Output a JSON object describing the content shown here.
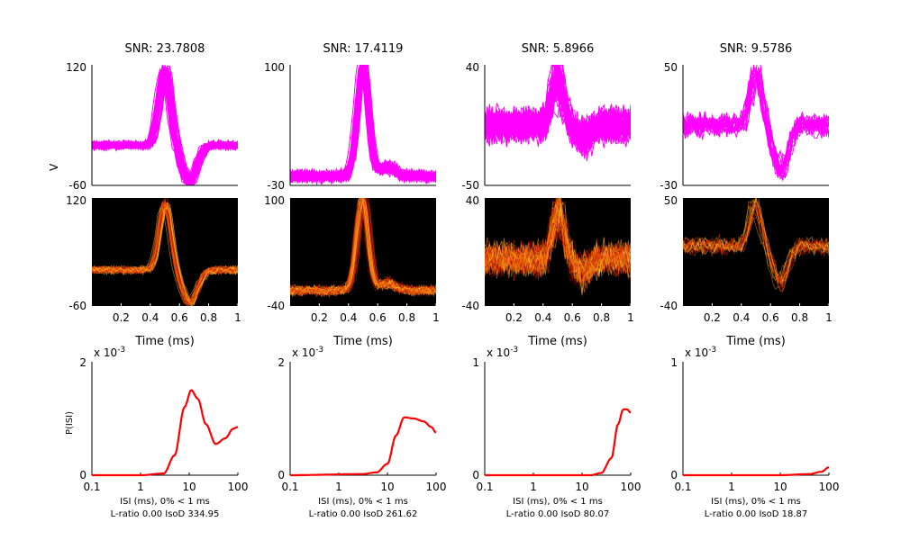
{
  "chart_data": {
    "type": "line",
    "units": {
      "waveform_xlabel": "Time (ms)",
      "ylabel_cut": "V",
      "isi_ylabel": "P(ISI)",
      "isi_exponent": "x 10",
      "isi_exponent_power": "-3"
    },
    "columns": [
      {
        "snr_title": "SNR: 23.7808",
        "wave": {
          "ylim": [
            -60,
            120
          ],
          "ylabels": [
            "120",
            "-60"
          ],
          "peak": 110,
          "trough": -55,
          "baseline": 0,
          "spread": 10,
          "n_traces": 60
        },
        "density": {
          "ylim": [
            -60,
            120
          ],
          "ylabels": [
            "120",
            "-60"
          ]
        },
        "isi": {
          "ymax_label": "2",
          "ylim": [
            0,
            2
          ],
          "curve": [
            [
              0.1,
              0
            ],
            [
              1,
              0
            ],
            [
              3,
              0.03
            ],
            [
              5,
              0.35
            ],
            [
              8,
              1.2
            ],
            [
              11,
              1.5
            ],
            [
              15,
              1.35
            ],
            [
              22,
              0.9
            ],
            [
              35,
              0.55
            ],
            [
              55,
              0.65
            ],
            [
              80,
              0.82
            ],
            [
              100,
              0.85
            ]
          ],
          "xlabel": "ISI (ms), 0% < 1 ms",
          "stats": "L-ratio 0.00 IsoD 334.95"
        }
      },
      {
        "snr_title": "SNR: 17.4119",
        "wave": {
          "ylim": [
            -30,
            100
          ],
          "ylabels": [
            "100",
            "-30"
          ],
          "peak": 100,
          "trough": -10,
          "baseline": -20,
          "spread": 10,
          "n_traces": 60
        },
        "density": {
          "ylim": [
            -40,
            100
          ],
          "ylabels": [
            "100",
            "-40"
          ]
        },
        "isi": {
          "ymax_label": "2",
          "ylim": [
            0,
            2
          ],
          "curve": [
            [
              0.1,
              0
            ],
            [
              3,
              0.02
            ],
            [
              6,
              0.05
            ],
            [
              10,
              0.2
            ],
            [
              15,
              0.7
            ],
            [
              22,
              1.02
            ],
            [
              35,
              1.0
            ],
            [
              55,
              0.95
            ],
            [
              80,
              0.85
            ],
            [
              100,
              0.75
            ]
          ],
          "xlabel": "ISI (ms), 0% < 1 ms",
          "stats": "L-ratio 0.00 IsoD 261.62"
        }
      },
      {
        "snr_title": "SNR: 5.8966",
        "wave": {
          "ylim": [
            -50,
            40
          ],
          "ylabels": [
            "40",
            "-50"
          ],
          "peak": 30,
          "trough": -15,
          "baseline": -5,
          "spread": 20,
          "n_traces": 55
        },
        "density": {
          "ylim": [
            -40,
            40
          ],
          "ylabels": [
            "40",
            "-40"
          ]
        },
        "isi": {
          "ymax_label": "1",
          "ylim": [
            0,
            1
          ],
          "curve": [
            [
              0.1,
              0
            ],
            [
              5,
              0
            ],
            [
              15,
              0
            ],
            [
              25,
              0.02
            ],
            [
              40,
              0.15
            ],
            [
              55,
              0.45
            ],
            [
              70,
              0.58
            ],
            [
              85,
              0.58
            ],
            [
              100,
              0.55
            ]
          ],
          "xlabel": "ISI (ms), 0% < 1 ms",
          "stats": "L-ratio 0.00 IsoD 80.07"
        }
      },
      {
        "snr_title": "SNR: 9.5786",
        "wave": {
          "ylim": [
            -30,
            50
          ],
          "ylabels": [
            "50",
            "-30"
          ],
          "peak": 45,
          "trough": -20,
          "baseline": 10,
          "spread": 12,
          "n_traces": 20
        },
        "density": {
          "ylim": [
            -40,
            50
          ],
          "ylabels": [
            "50",
            "-40"
          ]
        },
        "isi": {
          "ymax_label": "1",
          "ylim": [
            0,
            1
          ],
          "curve": [
            [
              0.1,
              0
            ],
            [
              10,
              0
            ],
            [
              40,
              0.01
            ],
            [
              70,
              0.03
            ],
            [
              100,
              0.07
            ]
          ],
          "xlabel": "ISI (ms), 0% < 1 ms",
          "stats": "L-ratio 0.00 IsoD 18.87"
        }
      }
    ],
    "time_ticks": [
      "0.2",
      "0.4",
      "0.6",
      "0.8",
      "1"
    ],
    "isi_ticks": [
      "0.1",
      "1",
      "10",
      "100"
    ],
    "isi_ytick_zero": "0",
    "colors": {
      "wave": "#ff00ff",
      "isi": "#ff0000",
      "density_bg": "#000000"
    }
  }
}
